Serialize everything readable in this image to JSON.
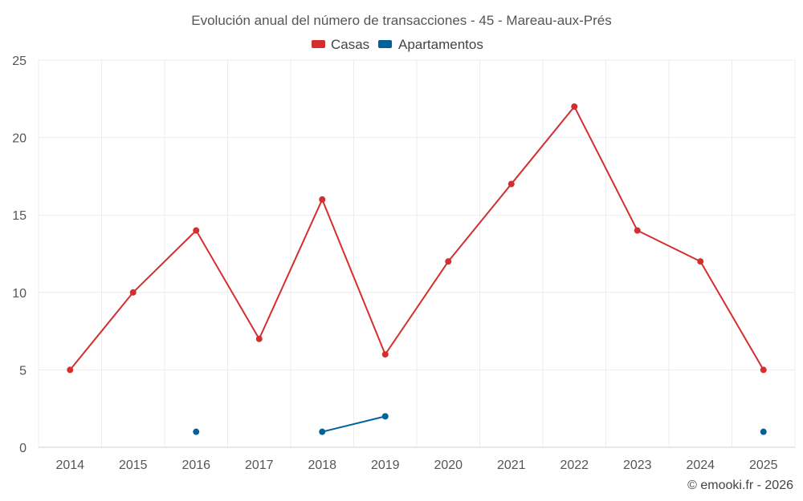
{
  "chart_data": {
    "type": "line",
    "title": "Evolución anual del número de transacciones - 45 - Mareau-aux-Prés",
    "categories": [
      "2014",
      "2015",
      "2016",
      "2017",
      "2018",
      "2019",
      "2020",
      "2021",
      "2022",
      "2023",
      "2024",
      "2025"
    ],
    "ylim": [
      0,
      25
    ],
    "yticks": [
      0,
      5,
      10,
      15,
      20,
      25
    ],
    "grid": true,
    "legend": "top-center",
    "series": [
      {
        "name": "Casas",
        "color": "#d32f2f",
        "values": [
          5,
          10,
          14,
          7,
          16,
          6,
          12,
          17,
          22,
          14,
          12,
          5
        ]
      },
      {
        "name": "Apartamentos",
        "color": "#00629b",
        "values": [
          null,
          null,
          1,
          null,
          1,
          2,
          null,
          null,
          null,
          null,
          null,
          1
        ]
      }
    ]
  },
  "credit": "© emooki.fr - 2026"
}
